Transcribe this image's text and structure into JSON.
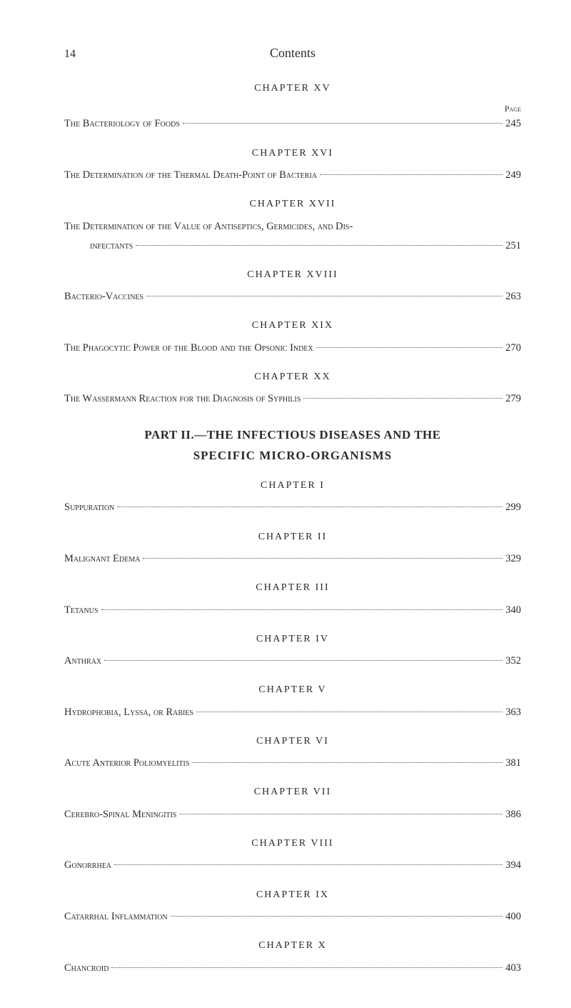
{
  "header": {
    "pageNumber": "14",
    "title": "Contents",
    "pageLabel": "Page"
  },
  "chapters": [
    {
      "heading": "CHAPTER XV",
      "showPageLabel": true,
      "entries": [
        {
          "title": "The Bacteriology of Foods",
          "page": "245"
        }
      ]
    },
    {
      "heading": "CHAPTER XVI",
      "entries": [
        {
          "title": "The Determination of the Thermal Death-Point of Bacteria",
          "page": "249"
        }
      ]
    },
    {
      "heading": "CHAPTER XVII",
      "entries": [
        {
          "title": "The Determination of the Value of Antiseptics, Germicides, and Dis-",
          "page": "",
          "noDots": true
        },
        {
          "title": "infectants",
          "page": "251",
          "indent": true
        }
      ]
    },
    {
      "heading": "CHAPTER XVIII",
      "entries": [
        {
          "title": "Bacterio-Vaccines",
          "page": "263"
        }
      ]
    },
    {
      "heading": "CHAPTER XIX",
      "entries": [
        {
          "title": "The Phagocytic Power of the Blood and the Opsonic Index",
          "page": "270"
        }
      ]
    },
    {
      "heading": "CHAPTER XX",
      "entries": [
        {
          "title": "The Wassermann Reaction for the Diagnosis of Syphilis",
          "page": "279"
        }
      ]
    }
  ],
  "part": {
    "line1": "PART II.—THE INFECTIOUS DISEASES AND THE",
    "line2": "SPECIFIC MICRO-ORGANISMS"
  },
  "chapters2": [
    {
      "heading": "CHAPTER I",
      "entries": [
        {
          "title": "Suppuration",
          "page": "299"
        }
      ]
    },
    {
      "heading": "CHAPTER II",
      "entries": [
        {
          "title": "Malignant Edema",
          "page": "329"
        }
      ]
    },
    {
      "heading": "CHAPTER III",
      "entries": [
        {
          "title": "Tetanus",
          "page": "340"
        }
      ]
    },
    {
      "heading": "CHAPTER IV",
      "entries": [
        {
          "title": "Anthrax",
          "page": "352"
        }
      ]
    },
    {
      "heading": "CHAPTER V",
      "entries": [
        {
          "title": "Hydrophobia, Lyssa, or Rabies",
          "page": "363"
        }
      ]
    },
    {
      "heading": "CHAPTER VI",
      "entries": [
        {
          "title": "Acute Anterior Poliomyelitis",
          "page": "381"
        }
      ]
    },
    {
      "heading": "CHAPTER VII",
      "entries": [
        {
          "title": "Cerebro-Spinal Meningitis",
          "page": "386"
        }
      ]
    },
    {
      "heading": "CHAPTER VIII",
      "entries": [
        {
          "title": "Gonorrhea",
          "page": "394"
        }
      ]
    },
    {
      "heading": "CHAPTER IX",
      "entries": [
        {
          "title": "Catarrhal Inflammation",
          "page": "400"
        }
      ]
    },
    {
      "heading": "CHAPTER X",
      "entries": [
        {
          "title": "Chancroid",
          "page": "403"
        }
      ]
    }
  ]
}
